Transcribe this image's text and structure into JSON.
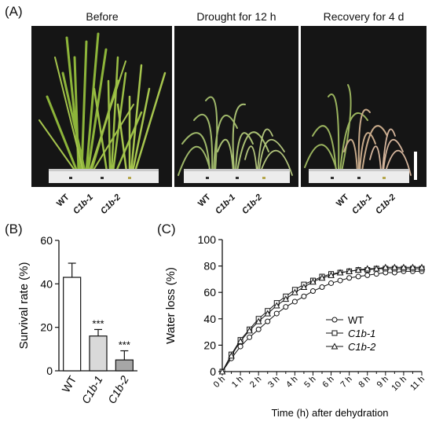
{
  "panel_a": {
    "letter": "(A)",
    "conditions": [
      {
        "title": "Before"
      },
      {
        "title": "Drought for 12 h"
      },
      {
        "title": "Recovery for 4 d"
      }
    ],
    "genotypes": [
      "WT",
      "C1b-1",
      "C1b-2"
    ]
  },
  "panel_b": {
    "letter": "(B)"
  },
  "panel_c": {
    "letter": "(C)"
  },
  "chart_data": [
    {
      "type": "bar",
      "ylabel": "Survival rate (%)",
      "ylim": [
        0,
        60
      ],
      "yticks": [
        0,
        20,
        40,
        60
      ],
      "categories": [
        "WT",
        "C1b-1",
        "C1b-2"
      ],
      "values": [
        43,
        16,
        5
      ],
      "errors": [
        6.5,
        3.0,
        4.2
      ],
      "significance": [
        "",
        "***",
        "***"
      ],
      "fills": [
        "#ffffff",
        "#d9d9d9",
        "#a6a6a6"
      ]
    },
    {
      "type": "line",
      "ylabel": "Water loss (%)",
      "xlabel": "Time (h) after dehydration",
      "ylim": [
        0,
        100
      ],
      "yticks": [
        0,
        20,
        40,
        60,
        80,
        100
      ],
      "x": [
        0,
        0.5,
        1,
        1.5,
        2,
        2.5,
        3,
        3.5,
        4,
        4.5,
        5,
        5.5,
        6,
        6.5,
        7,
        7.5,
        8,
        8.5,
        9,
        9.5,
        10,
        10.5,
        11
      ],
      "xticklabels": [
        "0 h",
        "1 h",
        "2 h",
        "3 h",
        "4 h",
        "5 h",
        "6 h",
        "7 h",
        "8 h",
        "9 h",
        "10 h",
        "11 h"
      ],
      "legend_position": "bottom-right",
      "series": [
        {
          "name": "WT",
          "marker": "circle",
          "values": [
            0,
            10,
            19,
            26,
            32,
            38,
            44,
            49,
            53,
            57,
            61,
            64,
            67,
            69,
            71,
            72,
            73,
            74,
            75,
            75,
            76,
            76,
            76
          ]
        },
        {
          "name": "C1b-1",
          "marker": "square",
          "values": [
            0,
            13,
            24,
            32,
            40,
            46,
            52,
            57,
            62,
            66,
            69,
            72,
            74,
            75,
            76,
            77,
            77,
            78,
            78,
            78,
            78,
            78,
            78
          ]
        },
        {
          "name": "C1b-2",
          "marker": "triangle",
          "values": [
            0,
            12,
            23,
            31,
            38,
            44,
            50,
            55,
            60,
            64,
            68,
            71,
            73,
            75,
            76,
            77,
            78,
            78,
            79,
            79,
            79,
            79,
            79
          ]
        }
      ]
    }
  ]
}
